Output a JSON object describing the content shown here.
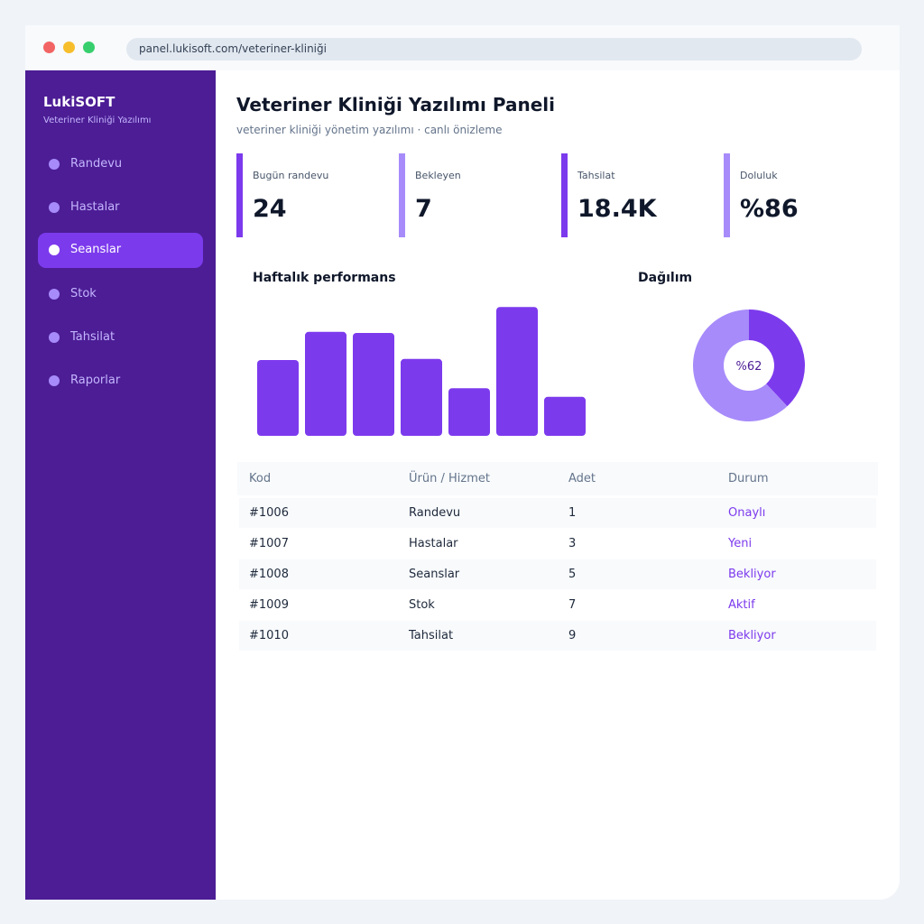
{
  "browser": {
    "url": "panel.lukisoft.com/veteriner-kliniği"
  },
  "sidebar": {
    "brand": "LukiSOFT",
    "brand_subtitle": "Veteriner Kliniği Yazılımı",
    "items": [
      {
        "label": "Randevu",
        "active": false
      },
      {
        "label": "Hastalar",
        "active": false
      },
      {
        "label": "Seanslar",
        "active": true
      },
      {
        "label": "Stok",
        "active": false
      },
      {
        "label": "Tahsilat",
        "active": false
      },
      {
        "label": "Raporlar",
        "active": false
      }
    ]
  },
  "main": {
    "title": "Veteriner Kliniği Yazılımı Paneli",
    "subtitle": "veteriner kliniği yönetim yazılımı · canlı önizleme"
  },
  "stats": [
    {
      "label": "Bugün randevu",
      "value": "24",
      "color": "#7c3aed"
    },
    {
      "label": "Bekleyen",
      "value": "7",
      "color": "#a78bfa"
    },
    {
      "label": "Tahsilat",
      "value": "18.4K",
      "color": "#7c3aed"
    },
    {
      "label": "Doluluk",
      "value": "%86",
      "color": "#a78bfa"
    }
  ],
  "charts": {
    "performance_title": "Haftalık performans",
    "distribution_title": "Dağılım"
  },
  "chart_data": [
    {
      "type": "bar",
      "title": "Haftalık performans",
      "values": [
        70,
        96,
        95,
        71,
        44,
        119,
        36
      ],
      "color": "#7c3aed"
    },
    {
      "type": "pie",
      "title": "Dağılım",
      "center_label": "%62",
      "slices": [
        {
          "value": 38,
          "color": "#7c3aed"
        },
        {
          "value": 62,
          "color": "#a78bfa"
        }
      ]
    }
  ],
  "table": {
    "headers": [
      "Kod",
      "Ürün / Hizmet",
      "Adet",
      "Durum"
    ],
    "rows": [
      {
        "code": "#1006",
        "item": "Randevu",
        "qty": "1",
        "status": "Onaylı"
      },
      {
        "code": "#1007",
        "item": "Hastalar",
        "qty": "3",
        "status": "Yeni"
      },
      {
        "code": "#1008",
        "item": "Seanslar",
        "qty": "5",
        "status": "Bekliyor"
      },
      {
        "code": "#1009",
        "item": "Stok",
        "qty": "7",
        "status": "Aktif"
      },
      {
        "code": "#1010",
        "item": "Tahsilat",
        "qty": "9",
        "status": "Bekliyor"
      }
    ]
  }
}
